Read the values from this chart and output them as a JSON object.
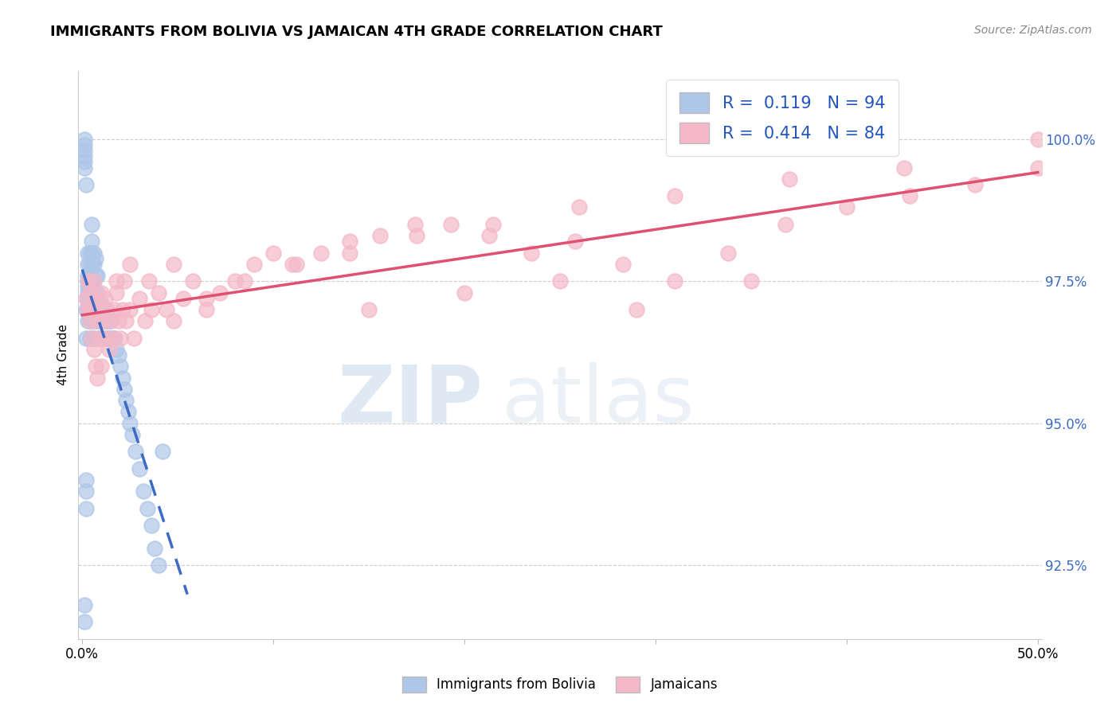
{
  "title": "IMMIGRANTS FROM BOLIVIA VS JAMAICAN 4TH GRADE CORRELATION CHART",
  "source": "Source: ZipAtlas.com",
  "ylabel": "4th Grade",
  "yticks": [
    92.5,
    95.0,
    97.5,
    100.0
  ],
  "ytick_labels": [
    "92.5%",
    "95.0%",
    "97.5%",
    "100.0%"
  ],
  "xlim": [
    -0.002,
    0.502
  ],
  "ylim": [
    91.2,
    101.2
  ],
  "bolivia_R": 0.119,
  "bolivia_N": 94,
  "jamaica_R": 0.414,
  "jamaica_N": 84,
  "bolivia_color": "#aec6e8",
  "jamaica_color": "#f4b8c8",
  "bolivia_line_color": "#3b6bc4",
  "jamaica_line_color": "#e05070",
  "legend_bolivia_label": "Immigrants from Bolivia",
  "legend_jamaica_label": "Jamaicans",
  "watermark_left": "ZIP",
  "watermark_right": "atlas",
  "bolivia_scatter_x": [
    0.001,
    0.001,
    0.002,
    0.002,
    0.002,
    0.002,
    0.002,
    0.003,
    0.003,
    0.003,
    0.003,
    0.003,
    0.003,
    0.003,
    0.003,
    0.003,
    0.004,
    0.004,
    0.004,
    0.004,
    0.004,
    0.004,
    0.004,
    0.004,
    0.004,
    0.004,
    0.005,
    0.005,
    0.005,
    0.005,
    0.005,
    0.005,
    0.005,
    0.005,
    0.005,
    0.006,
    0.006,
    0.006,
    0.006,
    0.006,
    0.006,
    0.007,
    0.007,
    0.007,
    0.007,
    0.007,
    0.007,
    0.008,
    0.008,
    0.008,
    0.008,
    0.009,
    0.009,
    0.009,
    0.01,
    0.01,
    0.01,
    0.011,
    0.011,
    0.011,
    0.012,
    0.012,
    0.013,
    0.013,
    0.014,
    0.014,
    0.015,
    0.015,
    0.016,
    0.017,
    0.018,
    0.019,
    0.02,
    0.021,
    0.022,
    0.023,
    0.024,
    0.025,
    0.026,
    0.028,
    0.03,
    0.032,
    0.034,
    0.036,
    0.038,
    0.04,
    0.042,
    0.001,
    0.001,
    0.001,
    0.001,
    0.001,
    0.001,
    0.002
  ],
  "bolivia_scatter_y": [
    91.5,
    91.8,
    93.8,
    93.5,
    94.0,
    96.5,
    97.0,
    96.8,
    97.0,
    97.2,
    97.3,
    97.4,
    97.5,
    97.6,
    97.8,
    98.0,
    96.5,
    96.8,
    97.0,
    97.1,
    97.2,
    97.3,
    97.5,
    97.6,
    97.8,
    98.0,
    96.5,
    96.8,
    97.0,
    97.2,
    97.5,
    97.8,
    98.0,
    98.2,
    98.5,
    96.8,
    97.0,
    97.2,
    97.5,
    97.8,
    98.0,
    96.5,
    96.8,
    97.0,
    97.3,
    97.6,
    97.9,
    96.8,
    97.0,
    97.3,
    97.6,
    96.5,
    96.8,
    97.1,
    96.5,
    96.8,
    97.1,
    96.5,
    96.8,
    97.0,
    96.5,
    96.8,
    96.5,
    96.8,
    96.5,
    96.8,
    96.5,
    96.8,
    96.5,
    96.5,
    96.3,
    96.2,
    96.0,
    95.8,
    95.6,
    95.4,
    95.2,
    95.0,
    94.8,
    94.5,
    94.2,
    93.8,
    93.5,
    93.2,
    92.8,
    92.5,
    94.5,
    99.5,
    99.6,
    99.7,
    99.8,
    99.9,
    100.0,
    99.2
  ],
  "jamaica_scatter_x": [
    0.002,
    0.003,
    0.004,
    0.004,
    0.005,
    0.005,
    0.006,
    0.006,
    0.007,
    0.007,
    0.008,
    0.008,
    0.009,
    0.01,
    0.01,
    0.011,
    0.012,
    0.013,
    0.014,
    0.015,
    0.016,
    0.017,
    0.018,
    0.019,
    0.02,
    0.021,
    0.022,
    0.023,
    0.025,
    0.027,
    0.03,
    0.033,
    0.036,
    0.04,
    0.044,
    0.048,
    0.053,
    0.058,
    0.065,
    0.072,
    0.08,
    0.09,
    0.1,
    0.112,
    0.125,
    0.14,
    0.156,
    0.174,
    0.193,
    0.213,
    0.235,
    0.258,
    0.283,
    0.31,
    0.338,
    0.368,
    0.4,
    0.433,
    0.467,
    0.5,
    0.003,
    0.005,
    0.008,
    0.012,
    0.018,
    0.025,
    0.035,
    0.048,
    0.065,
    0.085,
    0.11,
    0.14,
    0.175,
    0.215,
    0.26,
    0.31,
    0.37,
    0.43,
    0.5,
    0.29,
    0.35,
    0.15,
    0.2,
    0.25
  ],
  "jamaica_scatter_y": [
    97.2,
    97.0,
    96.8,
    97.3,
    96.5,
    97.0,
    96.3,
    97.5,
    96.0,
    97.2,
    95.8,
    97.0,
    96.5,
    96.0,
    97.3,
    96.8,
    96.5,
    97.0,
    96.3,
    96.8,
    96.5,
    97.0,
    97.3,
    96.8,
    96.5,
    97.0,
    97.5,
    96.8,
    97.0,
    96.5,
    97.2,
    96.8,
    97.0,
    97.3,
    97.0,
    96.8,
    97.2,
    97.5,
    97.0,
    97.3,
    97.5,
    97.8,
    98.0,
    97.8,
    98.0,
    98.2,
    98.3,
    98.5,
    98.5,
    98.3,
    98.0,
    98.2,
    97.8,
    97.5,
    98.0,
    98.5,
    98.8,
    99.0,
    99.2,
    99.5,
    97.5,
    97.0,
    96.8,
    97.2,
    97.5,
    97.8,
    97.5,
    97.8,
    97.2,
    97.5,
    97.8,
    98.0,
    98.3,
    98.5,
    98.8,
    99.0,
    99.3,
    99.5,
    100.0,
    97.0,
    97.5,
    97.0,
    97.3,
    97.5
  ]
}
